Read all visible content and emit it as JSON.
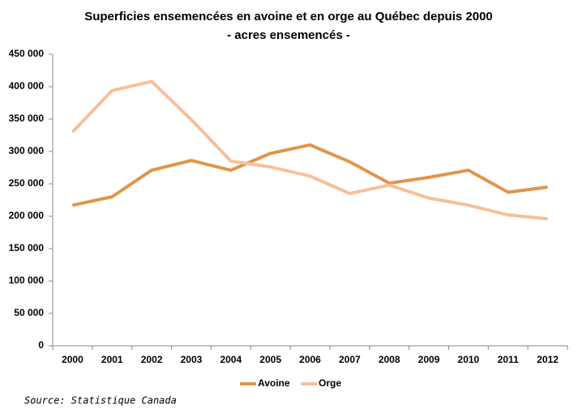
{
  "chart_data": {
    "type": "line",
    "title": "Superficies ensemencées en avoine et en orge au Québec depuis 2000",
    "subtitle": "- acres ensemencés -",
    "categories": [
      "2000",
      "2001",
      "2002",
      "2003",
      "2004",
      "2005",
      "2006",
      "2007",
      "2008",
      "2009",
      "2010",
      "2011",
      "2012"
    ],
    "series": [
      {
        "name": "Avoine",
        "color": "#e0954a",
        "values": [
          217000,
          230000,
          271000,
          286000,
          271000,
          297000,
          310000,
          284000,
          251000,
          260000,
          271000,
          237000,
          245000
        ]
      },
      {
        "name": "Orge",
        "color": "#f6c09a",
        "values": [
          330000,
          394000,
          408000,
          349000,
          285000,
          276000,
          262000,
          235000,
          248000,
          228000,
          217000,
          202000,
          196000
        ]
      }
    ],
    "ylim": [
      0,
      450000
    ],
    "yticks": [
      {
        "value": 0,
        "label": "0"
      },
      {
        "value": 50000,
        "label": "50 000"
      },
      {
        "value": 100000,
        "label": "100 000"
      },
      {
        "value": 150000,
        "label": "150 000"
      },
      {
        "value": 200000,
        "label": "200 000"
      },
      {
        "value": 250000,
        "label": "250 000"
      },
      {
        "value": 300000,
        "label": "300 000"
      },
      {
        "value": 350000,
        "label": "350 000"
      },
      {
        "value": 400000,
        "label": "400 000"
      },
      {
        "value": 450000,
        "label": "450 000"
      }
    ],
    "grid": false,
    "legend": "bottom",
    "source": "Source: Statistique Canada"
  }
}
